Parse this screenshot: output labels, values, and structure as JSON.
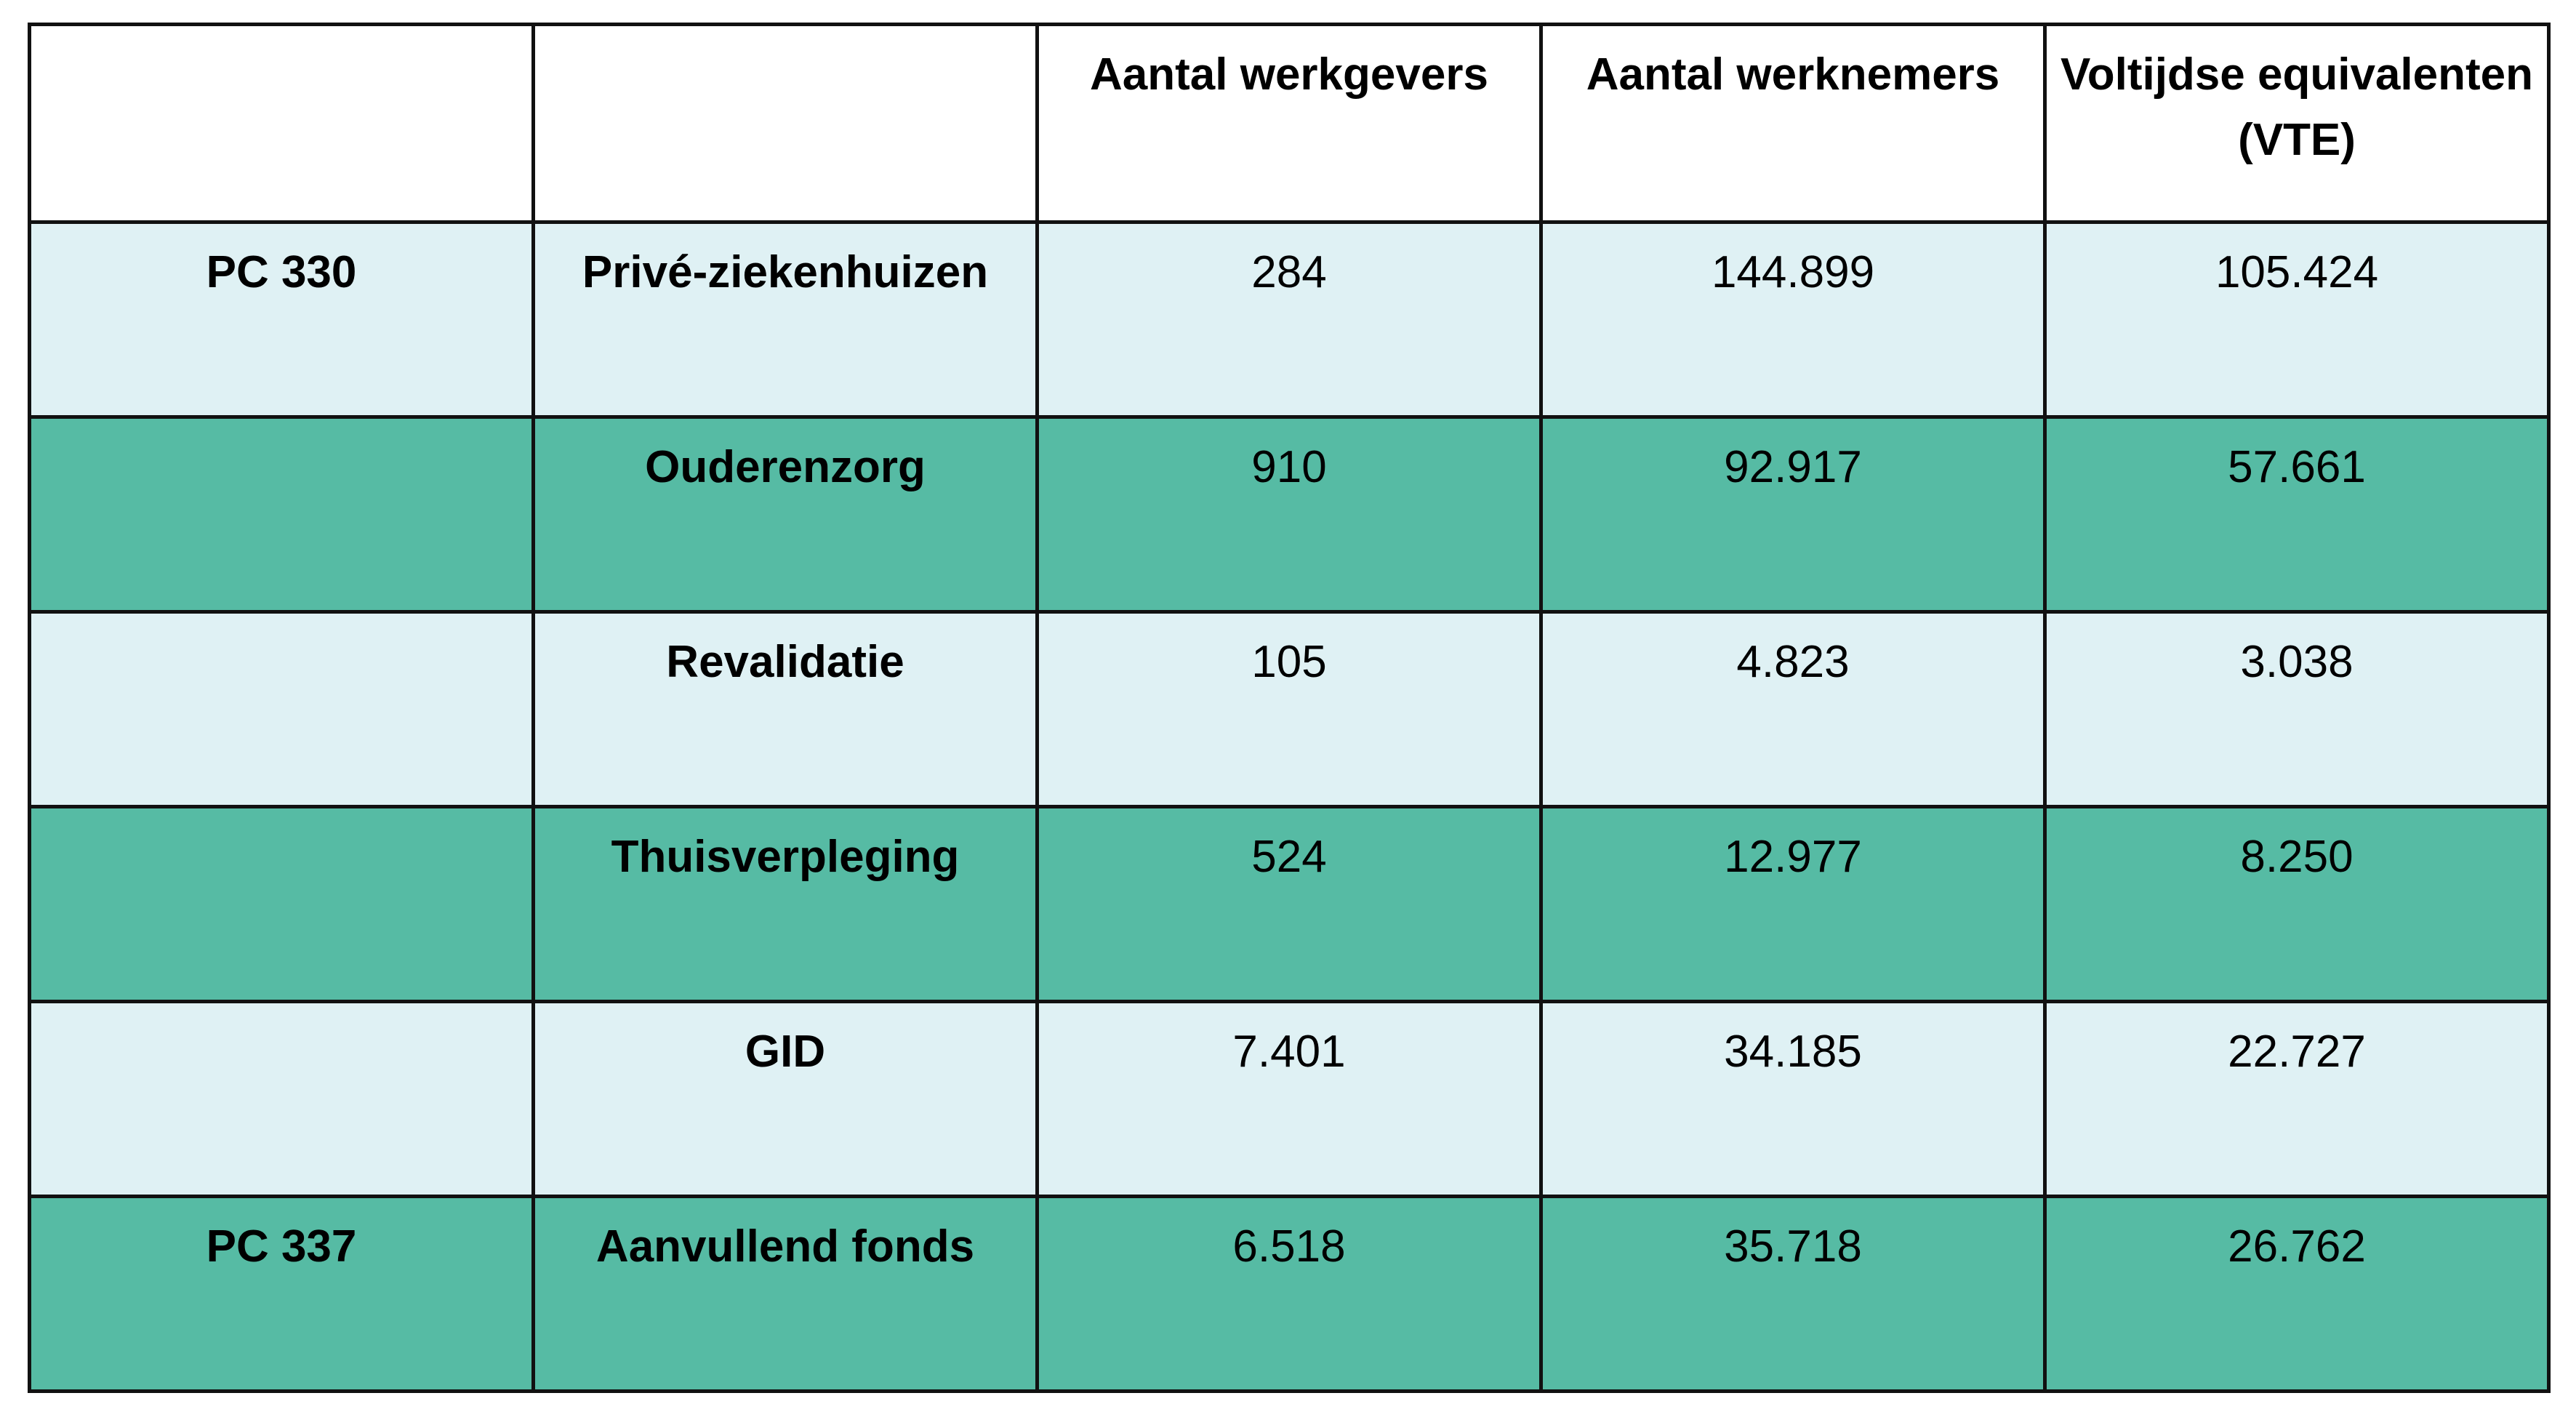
{
  "colors": {
    "light_row": "#dff1f4",
    "dark_row": "#56bba4",
    "header_bg": "#ffffff",
    "border": "#111111"
  },
  "table": {
    "headers": [
      "",
      "",
      "Aantal werkgevers",
      "Aantal werknemers",
      "Voltijdse equivalenten (VTE)"
    ],
    "rows": [
      {
        "pc": "PC 330",
        "sector": "Privé-ziekenhuizen",
        "werkgevers": "284",
        "werknemers": "144.899",
        "vte": "105.424",
        "shade": "light"
      },
      {
        "pc": "",
        "sector": "Ouderenzorg",
        "werkgevers": "910",
        "werknemers": "92.917",
        "vte": "57.661",
        "shade": "dark"
      },
      {
        "pc": "",
        "sector": "Revalidatie",
        "werkgevers": "105",
        "werknemers": "4.823",
        "vte": "3.038",
        "shade": "light"
      },
      {
        "pc": "",
        "sector": "Thuisverpleging",
        "werkgevers": "524",
        "werknemers": "12.977",
        "vte": "8.250",
        "shade": "dark"
      },
      {
        "pc": "",
        "sector": "GID",
        "werkgevers": "7.401",
        "werknemers": "34.185",
        "vte": "22.727",
        "shade": "light"
      },
      {
        "pc": "PC 337",
        "sector": "Aanvullend fonds",
        "werkgevers": "6.518",
        "werknemers": "35.718",
        "vte": "26.762",
        "shade": "dark"
      }
    ]
  }
}
